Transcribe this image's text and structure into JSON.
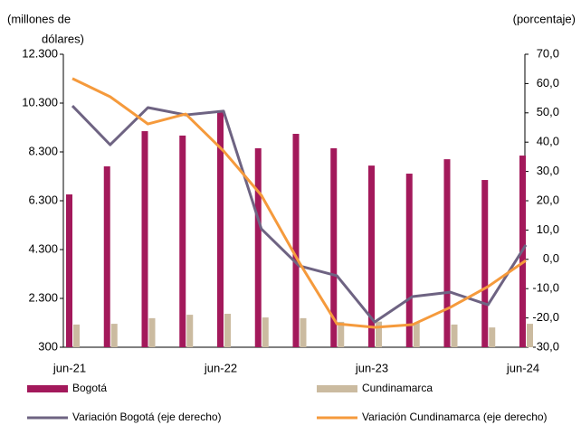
{
  "chart_data": {
    "type": "bar_line",
    "y_label": [
      "(millones de",
      "dólares)"
    ],
    "y2_label": "(porcentaje)",
    "categories": [
      "jun-21",
      null,
      null,
      null,
      "jun-22",
      null,
      null,
      null,
      "jun-23",
      null,
      null,
      null,
      "jun-24"
    ],
    "series": [
      {
        "name": "Bogotá",
        "kind": "bar",
        "color": "#a3195b",
        "values": [
          6560,
          7710,
          9150,
          8970,
          9930,
          8450,
          9040,
          8450,
          7740,
          7410,
          8000,
          7150,
          8150
        ]
      },
      {
        "name": "Cundinamarca",
        "kind": "bar",
        "color": "#cbbba0",
        "values": [
          1230,
          1260,
          1490,
          1630,
          1670,
          1520,
          1490,
          1340,
          1350,
          1300,
          1230,
          1110,
          1260
        ]
      },
      {
        "name": "Variación Bogotá (eje derecho)",
        "kind": "line",
        "axis": "y2",
        "color": "#6e6382",
        "values": [
          52.4,
          39.1,
          51.8,
          49.3,
          50.6,
          10.4,
          -2.2,
          -5.6,
          -21.4,
          -12.7,
          -11.2,
          -15.5,
          4.9
        ]
      },
      {
        "name": "Variación Cundinamarca (eje derecho)",
        "kind": "line",
        "axis": "y2",
        "color": "#f59a3c",
        "values": [
          61.7,
          55.5,
          46.2,
          49.6,
          37,
          21.9,
          -1,
          -22,
          -23.2,
          -22.3,
          -16.4,
          -9.3,
          -0.4
        ]
      }
    ],
    "ylim": [
      300,
      12300
    ],
    "yticks": [
      300,
      {
        "value": 2300,
        "label": "2.300"
      },
      {
        "value": 4300,
        "label": "4.300"
      },
      {
        "value": 6300,
        "label": "6.300"
      },
      {
        "value": 8300,
        "label": "8.300"
      },
      {
        "value": 10300,
        "label": "10.300"
      },
      {
        "value": 12300,
        "label": "12.300"
      }
    ],
    "y2lim": [
      -30,
      70
    ],
    "y2ticks": [
      {
        "value": -30,
        "label": "-30,0"
      },
      {
        "value": -20,
        "label": "-20,0"
      },
      {
        "value": -10,
        "label": "-10,0"
      },
      {
        "value": 0,
        "label": "0,0"
      },
      {
        "value": 10,
        "label": "10,0"
      },
      {
        "value": 20,
        "label": "20,0"
      },
      {
        "value": 30,
        "label": "30,0"
      },
      {
        "value": 40,
        "label": "40,0"
      },
      {
        "value": 50,
        "label": "50,0"
      },
      {
        "value": 60,
        "label": "60,0"
      },
      {
        "value": 70,
        "label": "70,0"
      }
    ]
  }
}
